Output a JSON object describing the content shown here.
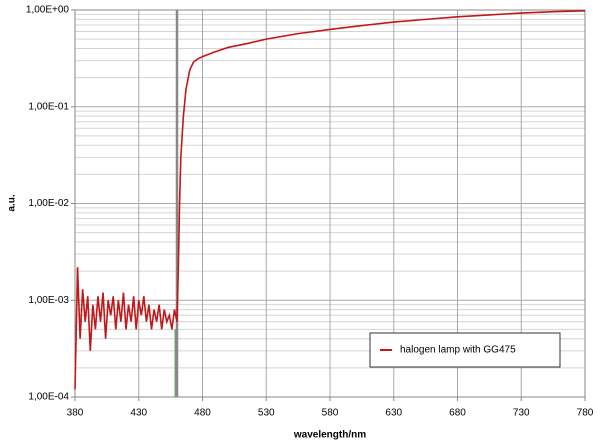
{
  "chart_data": {
    "type": "line",
    "log_y": true,
    "grid": true,
    "minor_grid": true,
    "legend": "lower right",
    "xlabel": "wavelength/nm",
    "ylabel": "a.u.",
    "xlim": [
      380,
      780
    ],
    "xticks": [
      380,
      430,
      480,
      530,
      580,
      630,
      680,
      730,
      780
    ],
    "ylim": [
      0.0001,
      1
    ],
    "yticks": [
      {
        "value": 0.0001,
        "label": "1,00E-04"
      },
      {
        "value": 0.001,
        "label": "1,00E-03"
      },
      {
        "value": 0.01,
        "label": "1,00E-02"
      },
      {
        "value": 0.1,
        "label": "1,00E-01"
      },
      {
        "value": 1,
        "label": "1,00E+00"
      }
    ],
    "series": [
      {
        "color": "#6aa56f",
        "x": [
          459,
          459
        ],
        "values": [
          0.0001,
          0.0005
        ]
      },
      {
        "color": "#888888",
        "x": [
          460,
          460
        ],
        "values": [
          0.0001,
          1
        ]
      },
      {
        "name": "halogen lamp with GG475",
        "color": "#c0181b",
        "x": [
          380,
          382,
          384,
          386,
          388,
          390,
          392,
          394,
          396,
          398,
          400,
          402,
          404,
          406,
          408,
          410,
          412,
          414,
          416,
          418,
          420,
          422,
          424,
          426,
          428,
          430,
          432,
          434,
          436,
          438,
          440,
          442,
          444,
          446,
          448,
          450,
          452,
          454,
          456,
          458,
          460,
          461,
          462,
          463,
          465,
          467,
          470,
          473,
          476,
          480,
          490,
          500,
          515,
          530,
          555,
          580,
          605,
          630,
          655,
          680,
          705,
          730,
          755,
          780
        ],
        "values": [
          0.00012,
          0.0022,
          0.0004,
          0.0013,
          0.0006,
          0.0011,
          0.0003,
          0.0009,
          0.0005,
          0.0011,
          0.0006,
          0.0012,
          0.0004,
          0.001,
          0.0007,
          0.0011,
          0.0005,
          0.001,
          0.0006,
          0.0012,
          0.0005,
          0.0009,
          0.0006,
          0.0011,
          0.0005,
          0.001,
          0.0007,
          0.0011,
          0.0006,
          0.0009,
          0.0005,
          0.0008,
          0.0006,
          0.0009,
          0.0005,
          0.0008,
          0.0006,
          0.0007,
          0.0005,
          0.0008,
          0.0006,
          0.002,
          0.01,
          0.03,
          0.08,
          0.15,
          0.24,
          0.29,
          0.31,
          0.33,
          0.37,
          0.41,
          0.45,
          0.5,
          0.57,
          0.63,
          0.69,
          0.75,
          0.8,
          0.85,
          0.89,
          0.93,
          0.96,
          0.98
        ]
      }
    ]
  }
}
